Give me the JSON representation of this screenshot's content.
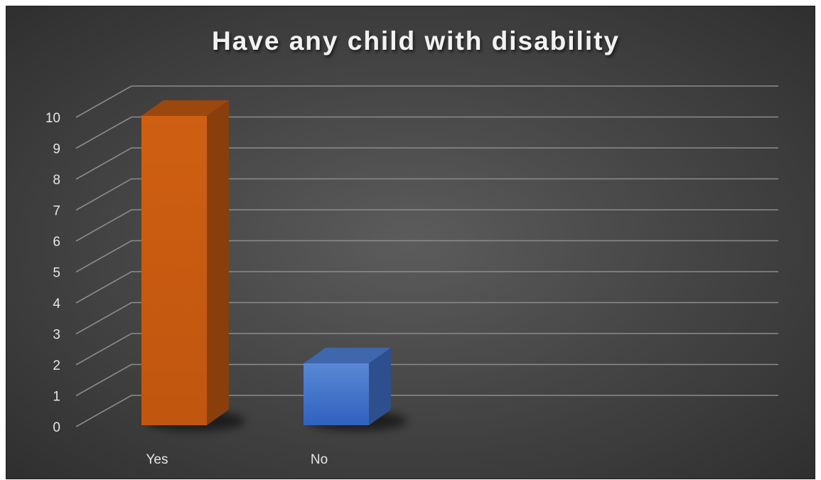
{
  "chart_data": {
    "type": "bar",
    "title": "Have any child with disability",
    "categories": [
      "Yes",
      "No"
    ],
    "values": [
      10,
      2
    ],
    "ylim": [
      0,
      10
    ],
    "yticks": [
      "0",
      "1",
      "2",
      "3",
      "4",
      "5",
      "6",
      "7",
      "8",
      "9",
      "10"
    ],
    "grid": true,
    "legend": "none",
    "style": "3d-column",
    "colors": {
      "Yes": "#c55a11",
      "No": "#4472c4",
      "background": "#4a4a4a",
      "grid": "#8c8c8c",
      "text": "#e6e6e6"
    }
  }
}
